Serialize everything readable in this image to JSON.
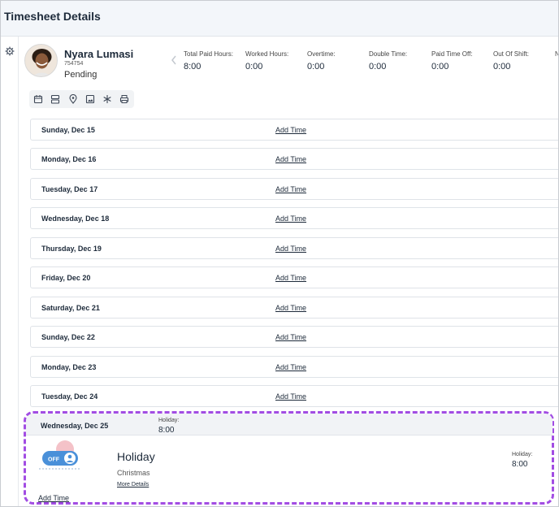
{
  "header": {
    "title": "Timesheet Details"
  },
  "employee": {
    "name": "Nyara Lumasi",
    "id": "754754",
    "status": "Pending"
  },
  "stats": [
    {
      "label": "Total Paid Hours:",
      "value": "8:00"
    },
    {
      "label": "Worked Hours:",
      "value": "0:00"
    },
    {
      "label": "Overtime:",
      "value": "0:00"
    },
    {
      "label": "Double Time:",
      "value": "0:00"
    },
    {
      "label": "Paid Time Off:",
      "value": "0:00"
    },
    {
      "label": "Out Of Shift:",
      "value": "0:00"
    },
    {
      "label": "N",
      "value": ""
    }
  ],
  "toolbar": {
    "icons": [
      "calendar-icon",
      "layout-icon",
      "location-pin-icon",
      "image-icon",
      "snowflake-icon",
      "print-icon"
    ]
  },
  "days": [
    {
      "name": "Sunday, Dec 15",
      "action": "Add Time"
    },
    {
      "name": "Monday, Dec 16",
      "action": "Add Time"
    },
    {
      "name": "Tuesday, Dec 17",
      "action": "Add Time"
    },
    {
      "name": "Wednesday, Dec 18",
      "action": "Add Time"
    },
    {
      "name": "Thursday, Dec 19",
      "action": "Add Time"
    },
    {
      "name": "Friday, Dec 20",
      "action": "Add Time"
    },
    {
      "name": "Saturday, Dec 21",
      "action": "Add Time"
    },
    {
      "name": "Sunday, Dec 22",
      "action": "Add Time"
    },
    {
      "name": "Monday, Dec 23",
      "action": "Add Time"
    },
    {
      "name": "Tuesday, Dec 24",
      "action": "Add Time"
    }
  ],
  "holiday_day": {
    "name": "Wednesday, Dec 25",
    "header_label": "Holiday:",
    "header_value": "8:00",
    "badge_text": "OFF",
    "title": "Holiday",
    "subtitle": "Christmas",
    "more_details": "More Details",
    "right_label": "Holiday:",
    "right_value": "8:00",
    "add_time": "Add Time"
  },
  "colors": {
    "highlight": "#a24de3",
    "badge_blue": "#4a90d9",
    "badge_pink": "#f4c2c8"
  }
}
